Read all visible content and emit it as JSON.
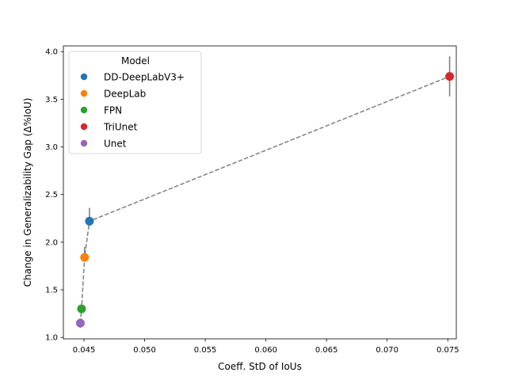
{
  "chart_data": {
    "type": "scatter",
    "title": "",
    "xlabel": "Coeff. StD of IoUs",
    "ylabel": "Change in Generalizability Gap (Δ%IoU)",
    "xlim": [
      0.0433,
      0.0757
    ],
    "ylim": [
      0.985,
      4.06
    ],
    "x_ticks": [
      0.045,
      0.05,
      0.055,
      0.06,
      0.065,
      0.07,
      0.075
    ],
    "x_tick_labels": [
      "0.045",
      "0.050",
      "0.055",
      "0.060",
      "0.065",
      "0.070",
      "0.075"
    ],
    "y_ticks": [
      1.0,
      1.5,
      2.0,
      2.5,
      3.0,
      3.5,
      4.0
    ],
    "y_tick_labels": [
      "1.0",
      "1.5",
      "2.0",
      "2.5",
      "3.0",
      "3.5",
      "4.0"
    ],
    "grid": false,
    "legend": {
      "title": "Model",
      "placement": "top-left"
    },
    "trend_line": {
      "style": "dashed",
      "color": "#808080"
    },
    "errorbar_color": "#808080",
    "series": [
      {
        "name": "DD-DeepLabV3+",
        "color": "#1f77b4",
        "x": 0.04545,
        "y": 2.22,
        "err": [
          2.17,
          2.36
        ]
      },
      {
        "name": "DeepLab",
        "color": "#ff7f0e",
        "x": 0.04505,
        "y": 1.84,
        "err": [
          1.83,
          1.95
        ]
      },
      {
        "name": "FPN",
        "color": "#2ca02c",
        "x": 0.0448,
        "y": 1.3,
        "err": [
          1.26,
          1.33
        ]
      },
      {
        "name": "TriUnet",
        "color": "#d62728",
        "x": 0.07515,
        "y": 3.74,
        "err": [
          3.53,
          3.95
        ]
      },
      {
        "name": "Unet",
        "color": "#9467bd",
        "x": 0.0447,
        "y": 1.15,
        "err": [
          1.1,
          1.2
        ]
      }
    ]
  }
}
